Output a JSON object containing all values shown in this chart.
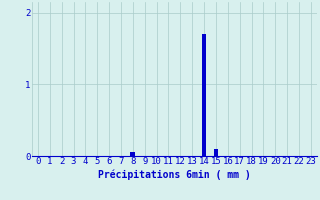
{
  "hours": [
    0,
    1,
    2,
    3,
    4,
    5,
    6,
    7,
    8,
    9,
    10,
    11,
    12,
    13,
    14,
    15,
    16,
    17,
    18,
    19,
    20,
    21,
    22,
    23
  ],
  "values": [
    0,
    0,
    0,
    0,
    0,
    0,
    0,
    0,
    0.05,
    0,
    0,
    0,
    0,
    0,
    1.7,
    0.1,
    0,
    0,
    0,
    0,
    0,
    0,
    0,
    0
  ],
  "bar_color": "#0000cc",
  "background_color": "#d8f0ee",
  "grid_color": "#aaccca",
  "axis_color": "#0000cc",
  "tick_color": "#0000cc",
  "xlabel": "Précipitations 6min ( mm )",
  "xlim": [
    -0.5,
    23.5
  ],
  "ylim": [
    0,
    2.15
  ],
  "yticks": [
    0,
    1,
    2
  ],
  "ytick_labels": [
    "0",
    "1",
    "2"
  ],
  "xticks": [
    0,
    1,
    2,
    3,
    4,
    5,
    6,
    7,
    8,
    9,
    10,
    11,
    12,
    13,
    14,
    15,
    16,
    17,
    18,
    19,
    20,
    21,
    22,
    23
  ],
  "xlabel_fontsize": 7,
  "tick_fontsize": 6.5
}
